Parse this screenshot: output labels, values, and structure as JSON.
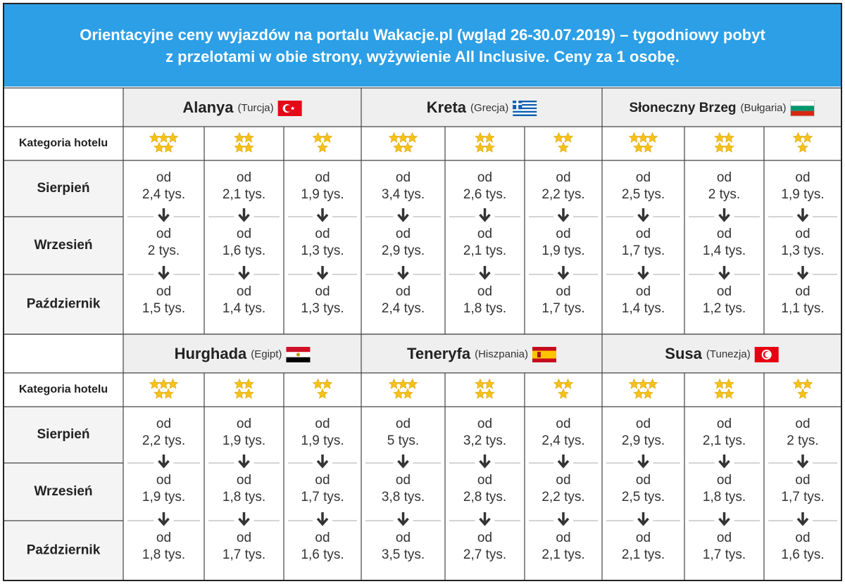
{
  "header": {
    "title": [
      "Orientacyjne ceny wyjazdów na portalu Wakacje.pl (wgląd 26-30.07.2019) – tygodniowy pobyt",
      "z przelotami w obie strony, wyżywienie All Inclusive. Ceny za 1 osobę."
    ]
  },
  "row_labels": {
    "category": "Kategoria hotelu",
    "months": [
      "Sierpień",
      "Wrzesień",
      "Październik"
    ]
  },
  "price_prefix": "od",
  "stars": [
    5,
    4,
    3
  ],
  "blocks": [
    {
      "destinations": [
        {
          "name": "Alanya",
          "country": "(Turcja)",
          "prices": [
            [
              "2,4 tys.",
              "2,1 tys.",
              "1,9 tys."
            ],
            [
              "2 tys.",
              "1,6 tys.",
              "1,3 tys."
            ],
            [
              "1,5 tys.",
              "1,4 tys.",
              "1,3 tys."
            ]
          ]
        },
        {
          "name": "Kreta",
          "country": "(Grecja)",
          "prices": [
            [
              "3,4 tys.",
              "2,6 tys.",
              "2,2 tys."
            ],
            [
              "2,9 tys.",
              "2,1 tys.",
              "1,9 tys."
            ],
            [
              "2,4 tys.",
              "1,8 tys.",
              "1,7 tys."
            ]
          ]
        },
        {
          "name": "Słoneczny Brzeg",
          "country": "(Bułgaria)",
          "prices": [
            [
              "2,5 tys.",
              "2 tys.",
              "1,9 tys."
            ],
            [
              "1,7 tys.",
              "1,4 tys.",
              "1,3 tys."
            ],
            [
              "1,4 tys.",
              "1,2 tys.",
              "1,1 tys."
            ]
          ]
        }
      ]
    },
    {
      "destinations": [
        {
          "name": "Hurghada",
          "country": "(Egipt)",
          "prices": [
            [
              "2,2 tys.",
              "1,9 tys.",
              "1,9 tys."
            ],
            [
              "1,9 tys.",
              "1,8 tys.",
              "1,7 tys."
            ],
            [
              "1,8 tys.",
              "1,7 tys.",
              "1,6 tys."
            ]
          ]
        },
        {
          "name": "Teneryfa",
          "country": "(Hiszpania)",
          "prices": [
            [
              "5 tys.",
              "3,2 tys.",
              "2,4 tys."
            ],
            [
              "3,8 tys.",
              "2,8 tys.",
              "2,2 tys."
            ],
            [
              "3,5 tys.",
              "2,7 tys.",
              "2,1 tys."
            ]
          ]
        },
        {
          "name": "Susa",
          "country": "(Tunezja)",
          "prices": [
            [
              "2,9 tys.",
              "2,1 tys.",
              "2 tys."
            ],
            [
              "2,5 tys.",
              "1,8 tys.",
              "1,7 tys."
            ],
            [
              "2,1 tys.",
              "1,7 tys.",
              "1,6 tys."
            ]
          ]
        }
      ]
    }
  ]
}
